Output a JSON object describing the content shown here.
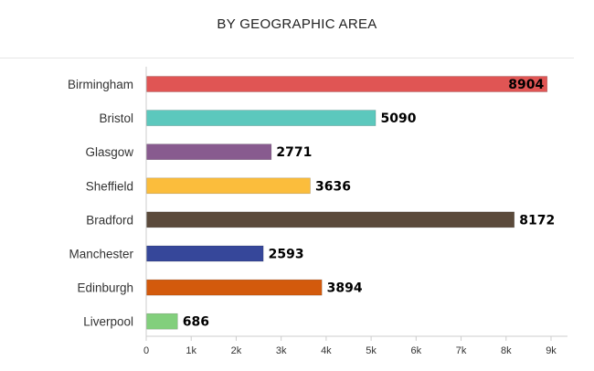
{
  "chart_data": {
    "type": "bar",
    "orientation": "horizontal",
    "title": "BY GEOGRAPHIC AREA",
    "categories": [
      "Birmingham",
      "Bristol",
      "Glasgow",
      "Sheffield",
      "Bradford",
      "Manchester",
      "Edinburgh",
      "Liverpool"
    ],
    "values": [
      8904,
      5090,
      2771,
      3636,
      8172,
      2593,
      3894,
      686
    ],
    "colors": [
      "#e05554",
      "#5cc8bd",
      "#885b8f",
      "#fbbd3c",
      "#5b4a3b",
      "#36479a",
      "#d35a0c",
      "#82cf7c"
    ],
    "xlim": [
      0,
      9000
    ],
    "xticks": [
      0,
      1000,
      2000,
      3000,
      4000,
      5000,
      6000,
      7000,
      8000,
      9000
    ],
    "xtick_labels": [
      "0",
      "1k",
      "2k",
      "3k",
      "4k",
      "5k",
      "6k",
      "7k",
      "8k",
      "9k"
    ],
    "grid": false,
    "legend": "none"
  }
}
